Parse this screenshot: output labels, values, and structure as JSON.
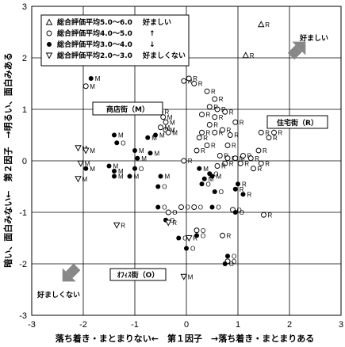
{
  "chart_data": {
    "type": "scatter",
    "xlabel": "落ち着き・まとまりない←　第１因子　→落ち着き・まとまりある",
    "ylabel": "暗い、面白みない←　第２因子　→明るい、面白みある",
    "xlim": [
      -3,
      3
    ],
    "ylim": [
      -3,
      3
    ],
    "x_ticks": [
      "-3",
      "-2",
      "-1",
      "0",
      "1",
      "2",
      "3"
    ],
    "y_ticks": [
      "3",
      "2",
      "1",
      "0",
      "-1",
      "-2",
      "-3"
    ],
    "grid": true,
    "legend": {
      "position": "top-left",
      "entries": [
        {
          "marker": "triangle-up-open",
          "label": "総合評価平均5.0～6.0",
          "pref": "好ましい"
        },
        {
          "marker": "circle-open",
          "label": "総合評価平均4.0～5.0",
          "pref": "↑"
        },
        {
          "marker": "circle-filled",
          "label": "総合評価平均3.0～4.0",
          "pref": "↓"
        },
        {
          "marker": "triangle-down-open",
          "label": "総合評価平均2.0～3.0",
          "pref": "好ましくない"
        }
      ]
    },
    "annotations": {
      "shopping": "商店街（M）",
      "residential": "住宅街（R）",
      "office": "ｵﾌｨｽ街（O）",
      "pref_good": "好ましい",
      "pref_bad": "好ましくない"
    },
    "series": [
      {
        "name": "総合評価平均5.0～6.0",
        "marker": "triangle-up-open",
        "points": [
          {
            "x": 1.45,
            "y": 2.65,
            "label": "R"
          },
          {
            "x": 1.15,
            "y": 2.05,
            "label": "R"
          }
        ]
      },
      {
        "name": "総合評価平均4.0～5.0",
        "marker": "circle-open",
        "points": [
          {
            "x": -1.95,
            "y": 1.45,
            "label": "M"
          },
          {
            "x": -0.75,
            "y": 1.05,
            "label": "M"
          },
          {
            "x": -0.5,
            "y": 0.95,
            "label": "R"
          },
          {
            "x": -0.45,
            "y": 0.85,
            "label": "M"
          },
          {
            "x": -0.4,
            "y": 0.6,
            "label": "M"
          },
          {
            "x": -0.35,
            "y": 0.55,
            "label": "M"
          },
          {
            "x": -0.4,
            "y": 0.75,
            "label": "M"
          },
          {
            "x": -0.5,
            "y": 0.65,
            "label": "M"
          },
          {
            "x": -0.05,
            "y": 1.55,
            "label": "R"
          },
          {
            "x": 0.05,
            "y": 1.6,
            "label": "R"
          },
          {
            "x": 0.15,
            "y": 1.5,
            "label": "R"
          },
          {
            "x": 0.4,
            "y": 1.35,
            "label": "R"
          },
          {
            "x": 0.55,
            "y": 1.2,
            "label": "R"
          },
          {
            "x": 0.6,
            "y": 1.0,
            "label": "R"
          },
          {
            "x": 0.45,
            "y": 1.05,
            "label": "R"
          },
          {
            "x": 0.75,
            "y": 0.95,
            "label": "R"
          },
          {
            "x": 0.3,
            "y": 0.9,
            "label": "R"
          },
          {
            "x": 0.55,
            "y": 0.85,
            "label": "R"
          },
          {
            "x": 0.45,
            "y": 0.7,
            "label": "R"
          },
          {
            "x": 0.3,
            "y": 0.55,
            "label": "R"
          },
          {
            "x": 0.25,
            "y": 0.45,
            "label": "R"
          },
          {
            "x": 0.55,
            "y": 0.55,
            "label": "R"
          },
          {
            "x": 0.7,
            "y": 0.6,
            "label": "R"
          },
          {
            "x": 0.85,
            "y": 0.5,
            "label": "R"
          },
          {
            "x": 0.95,
            "y": 0.75,
            "label": "R"
          },
          {
            "x": 0.8,
            "y": 0.3,
            "label": "R"
          },
          {
            "x": 0.4,
            "y": 0.3,
            "label": "R"
          },
          {
            "x": 0.2,
            "y": 0.2,
            "label": "R"
          },
          {
            "x": -0.05,
            "y": 0.0,
            "label": "R"
          },
          {
            "x": 0.65,
            "y": 0.1,
            "label": "R"
          },
          {
            "x": 0.8,
            "y": 0.05,
            "label": "R"
          },
          {
            "x": 0.95,
            "y": 0.05,
            "label": "M"
          },
          {
            "x": 1.1,
            "y": 0.1,
            "label": "R"
          },
          {
            "x": 1.25,
            "y": 0.05,
            "label": "R"
          },
          {
            "x": 1.4,
            "y": 0.2,
            "label": "R"
          },
          {
            "x": 1.45,
            "y": 0.55,
            "label": "R"
          },
          {
            "x": 1.6,
            "y": 0.45,
            "label": "R"
          },
          {
            "x": 1.7,
            "y": 0.55,
            "label": "R"
          },
          {
            "x": 1.45,
            "y": -0.05,
            "label": "R"
          },
          {
            "x": 1.3,
            "y": -0.15,
            "label": "R"
          },
          {
            "x": 1.05,
            "y": -0.05,
            "label": "R"
          },
          {
            "x": 0.75,
            "y": -0.05,
            "label": "R"
          },
          {
            "x": 0.6,
            "y": -0.1,
            "label": "R"
          },
          {
            "x": 1.5,
            "y": -1.05,
            "label": "R"
          },
          {
            "x": 0.7,
            "y": -1.45,
            "label": "R"
          },
          {
            "x": 0.8,
            "y": -1.95,
            "label": "O"
          },
          {
            "x": 0.9,
            "y": -0.95,
            "label": "O"
          },
          {
            "x": 0.15,
            "y": -0.9,
            "label": "O"
          },
          {
            "x": -0.1,
            "y": -0.9,
            "label": "O"
          },
          {
            "x": -0.35,
            "y": -1.0,
            "label": "O"
          },
          {
            "x": 0.2,
            "y": -1.35,
            "label": "O"
          }
        ]
      },
      {
        "name": "総合評価平均3.0～4.0",
        "marker": "circle-filled",
        "points": [
          {
            "x": -1.85,
            "y": 1.6,
            "label": "M"
          },
          {
            "x": -1.4,
            "y": 0.5,
            "label": "M"
          },
          {
            "x": -1.35,
            "y": 0.35,
            "label": "O"
          },
          {
            "x": -1.0,
            "y": 0.2,
            "label": "M"
          },
          {
            "x": -0.95,
            "y": 0.05,
            "label": "M"
          },
          {
            "x": -0.75,
            "y": 0.45,
            "label": "M"
          },
          {
            "x": -0.6,
            "y": 0.5,
            "label": "M"
          },
          {
            "x": -0.7,
            "y": 0.15,
            "label": "M"
          },
          {
            "x": -1.95,
            "y": -0.15,
            "label": "M"
          },
          {
            "x": -1.5,
            "y": -0.1,
            "label": "M"
          },
          {
            "x": -1.4,
            "y": -0.2,
            "label": "M"
          },
          {
            "x": -1.4,
            "y": -0.3,
            "label": "M"
          },
          {
            "x": -1.1,
            "y": -0.3,
            "label": "M"
          },
          {
            "x": -1.0,
            "y": -0.15,
            "label": "O"
          },
          {
            "x": -0.5,
            "y": -0.3,
            "label": "M"
          },
          {
            "x": -0.55,
            "y": -0.5,
            "label": "O"
          },
          {
            "x": 0.25,
            "y": -0.15,
            "label": "M"
          },
          {
            "x": 0.45,
            "y": -0.25,
            "label": "O"
          },
          {
            "x": 0.5,
            "y": -0.3,
            "label": "M"
          },
          {
            "x": 0.35,
            "y": -0.35,
            "label": "M"
          },
          {
            "x": 0.3,
            "y": -0.45,
            "label": "O"
          },
          {
            "x": 0.55,
            "y": -0.6,
            "label": "O"
          },
          {
            "x": 1.0,
            "y": -0.45,
            "label": "R"
          },
          {
            "x": 1.1,
            "y": -0.65,
            "label": "R"
          },
          {
            "x": 0.95,
            "y": -0.55,
            "label": "R"
          },
          {
            "x": 0.5,
            "y": -0.9,
            "label": "O"
          },
          {
            "x": 0.95,
            "y": -1.0,
            "label": "O"
          },
          {
            "x": -0.55,
            "y": -0.9,
            "label": "O"
          },
          {
            "x": -0.4,
            "y": -1.15,
            "label": "O"
          },
          {
            "x": -0.15,
            "y": -1.5,
            "label": "O"
          },
          {
            "x": 0.2,
            "y": -1.45,
            "label": "O"
          },
          {
            "x": 0.0,
            "y": -1.7,
            "label": "O"
          },
          {
            "x": 0.75,
            "y": -2.0,
            "label": "O"
          },
          {
            "x": 0.8,
            "y": -1.85,
            "label": "O"
          }
        ]
      },
      {
        "name": "総合評価平均2.0～3.0",
        "marker": "triangle-down-open",
        "points": [
          {
            "x": -2.1,
            "y": 0.25,
            "label": "M"
          },
          {
            "x": -1.95,
            "y": 0.2,
            "label": "M"
          },
          {
            "x": -2.05,
            "y": -0.05,
            "label": "M"
          },
          {
            "x": -2.1,
            "y": -0.35,
            "label": "M"
          },
          {
            "x": -1.35,
            "y": -1.25,
            "label": "R"
          },
          {
            "x": -0.35,
            "y": -1.2,
            "label": "R"
          },
          {
            "x": 0.05,
            "y": -1.5,
            "label": "R"
          },
          {
            "x": -0.05,
            "y": -2.25,
            "label": "M"
          }
        ]
      }
    ]
  }
}
